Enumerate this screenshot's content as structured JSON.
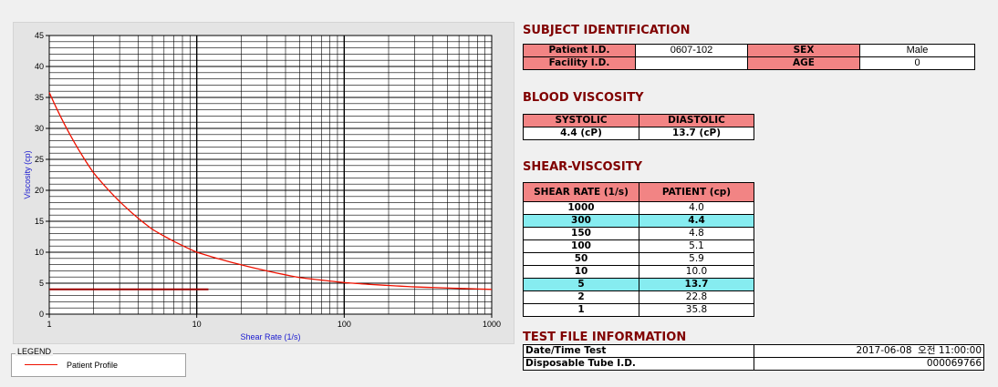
{
  "chart_data": {
    "type": "line",
    "xlabel": "Shear Rate (1/s)",
    "ylabel": "Viscosity (cp)",
    "xscale": "log",
    "xlim": [
      1,
      1000
    ],
    "ylim": [
      0,
      45
    ],
    "x_ticks": [
      "1",
      "10",
      "100",
      "1000"
    ],
    "y_ticks": [
      "0",
      "5",
      "10",
      "15",
      "20",
      "25",
      "30",
      "35",
      "40",
      "45"
    ],
    "grid": true,
    "series": [
      {
        "name": "Patient Profile",
        "x": [
          1,
          2,
          5,
          10,
          50,
          100,
          150,
          300,
          1000
        ],
        "y": [
          35.8,
          22.8,
          13.7,
          10.0,
          5.9,
          5.1,
          4.8,
          4.4,
          4.0
        ]
      }
    ],
    "reference_line_y": 4.0,
    "reference_line_x_end": 12,
    "legend": {
      "title": "LEGEND",
      "position": "bottom-left",
      "entries": [
        "Patient Profile"
      ]
    },
    "colors": {
      "series": "#ee1100",
      "reference": "#990000"
    }
  },
  "subject": {
    "title": "SUBJECT IDENTIFICATION",
    "patient_id_label": "Patient I.D.",
    "patient_id_value": "0607-102",
    "sex_label": "SEX",
    "sex_value": "Male",
    "facility_id_label": "Facility I.D.",
    "facility_id_value": "",
    "age_label": "AGE",
    "age_value": "0"
  },
  "blood": {
    "title": "BLOOD VISCOSITY",
    "systolic_label": "SYSTOLIC",
    "diastolic_label": "DIASTOLIC",
    "systolic_value": "4.4 (cP)",
    "diastolic_value": "13.7 (cP)"
  },
  "shear": {
    "title": "SHEAR-VISCOSITY",
    "rate_header": "SHEAR RATE (1/s)",
    "patient_header": "PATIENT (cp)",
    "rows": [
      {
        "rate": "1000",
        "value": "4.0"
      },
      {
        "rate": "300",
        "value": "4.4"
      },
      {
        "rate": "150",
        "value": "4.8"
      },
      {
        "rate": "100",
        "value": "5.1"
      },
      {
        "rate": "50",
        "value": "5.9"
      },
      {
        "rate": "10",
        "value": "10.0"
      },
      {
        "rate": "5",
        "value": "13.7"
      },
      {
        "rate": "2",
        "value": "22.8"
      },
      {
        "rate": "1",
        "value": "35.8"
      }
    ],
    "highlight_color": "#86ecf0"
  },
  "test": {
    "title": "TEST FILE INFORMATION",
    "datetime_label": "Date/Time Test",
    "datetime_value": "2017-06-08  오전 11:00:00",
    "tube_label": "Disposable Tube I.D.",
    "tube_value": "000069766"
  }
}
